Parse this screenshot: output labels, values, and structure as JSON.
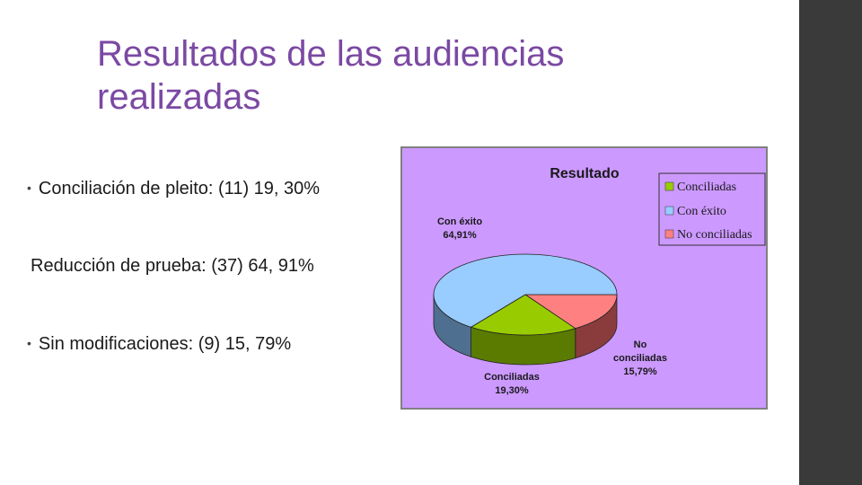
{
  "slide": {
    "title_line1": "Resultados de las audiencias",
    "title_line2": "realizadas"
  },
  "bullets": [
    {
      "text": "Conciliación de pleito: (11) 19, 30%",
      "has_dot": true
    },
    {
      "text": "Reducción de prueba: (37) 64, 91%",
      "has_dot": false
    },
    {
      "text": "Sin modificaciones: (9) 15, 79%",
      "has_dot": true
    }
  ],
  "bullet_glyph": "•",
  "chart_data": {
    "type": "pie",
    "title": "Resultado",
    "legend_position": "top-right",
    "background_color": "#cc99ff",
    "slices": [
      {
        "name": "Conciliadas",
        "value": 19.3,
        "label_name": "Conciliadas",
        "label_value": "19,30%",
        "color": "#99cc00",
        "side_color": "#5a7a00"
      },
      {
        "name": "Con éxito",
        "value": 64.91,
        "label_name": "Con éxito",
        "label_value": "64,91%",
        "color": "#99ccff",
        "side_color": "#4f6f90"
      },
      {
        "name": "No conciliadas",
        "value": 15.79,
        "label_name_line1": "No",
        "label_name_line2": "conciliadas",
        "label_value": "15,79%",
        "color": "#ff8080",
        "side_color": "#8a3c3c"
      }
    ]
  }
}
